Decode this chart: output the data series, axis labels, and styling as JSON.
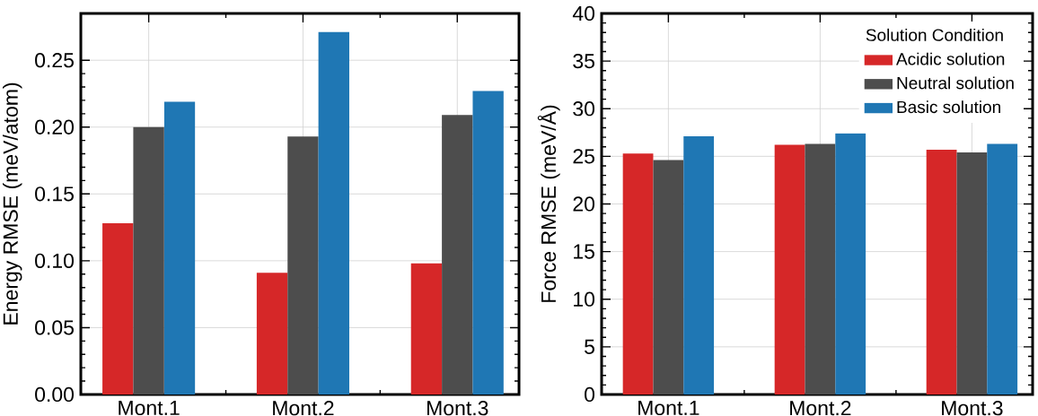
{
  "chart_data": [
    {
      "type": "bar",
      "ylabel": "Energy RMSE (meV/atom)",
      "categories": [
        "Mont.1",
        "Mont.2",
        "Mont.3"
      ],
      "series": [
        {
          "color": "#d62728",
          "values": [
            0.128,
            0.091,
            0.098
          ]
        },
        {
          "color": "#4d4d4d",
          "values": [
            0.2,
            0.193,
            0.209
          ]
        },
        {
          "color": "#1f77b4",
          "values": [
            0.219,
            0.271,
            0.227
          ]
        }
      ],
      "ylim": [
        0,
        0.285
      ],
      "yticks": [
        {
          "value": 0,
          "label": "0.00"
        },
        0.05,
        {
          "value": 0.1,
          "label": "0.10"
        },
        0.15,
        {
          "value": 0.2,
          "label": "0.20"
        },
        0.25
      ],
      "grid": true,
      "legend": false
    },
    {
      "type": "bar",
      "ylabel": "Force RMSE (meV/Å)",
      "categories": [
        "Mont.1",
        "Mont.2",
        "Mont.3"
      ],
      "legend_title": "Solution Condition",
      "series": [
        {
          "name": "Acidic solution",
          "color": "#d62728",
          "values": [
            25.3,
            26.2,
            25.7
          ]
        },
        {
          "name": "Neutral solution",
          "color": "#4d4d4d",
          "values": [
            24.6,
            26.3,
            25.4
          ]
        },
        {
          "name": "Basic solution",
          "color": "#1f77b4",
          "values": [
            27.1,
            27.4,
            26.3
          ]
        }
      ],
      "ylim": [
        0,
        40
      ],
      "yticks": [
        0,
        5,
        10,
        15,
        20,
        25,
        30,
        35,
        40
      ],
      "grid": true,
      "legend": "top right"
    }
  ]
}
